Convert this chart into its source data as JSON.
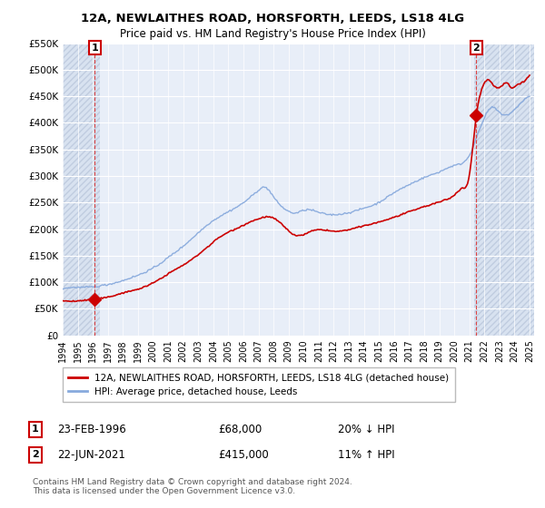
{
  "title": "12A, NEWLAITHES ROAD, HORSFORTH, LEEDS, LS18 4LG",
  "subtitle": "Price paid vs. HM Land Registry's House Price Index (HPI)",
  "ylim": [
    0,
    550000
  ],
  "yticks": [
    0,
    50000,
    100000,
    150000,
    200000,
    250000,
    300000,
    350000,
    400000,
    450000,
    500000,
    550000
  ],
  "ytick_labels": [
    "£0",
    "£50K",
    "£100K",
    "£150K",
    "£200K",
    "£250K",
    "£300K",
    "£350K",
    "£400K",
    "£450K",
    "£500K",
    "£550K"
  ],
  "xtick_years": [
    1994,
    1995,
    1996,
    1997,
    1998,
    1999,
    2000,
    2001,
    2002,
    2003,
    2004,
    2005,
    2006,
    2007,
    2008,
    2009,
    2010,
    2011,
    2012,
    2013,
    2014,
    2015,
    2016,
    2017,
    2018,
    2019,
    2020,
    2021,
    2022,
    2023,
    2024,
    2025
  ],
  "sale1_x": 1996.14,
  "sale1_y": 68000,
  "sale1_label": "1",
  "sale1_date": "23-FEB-1996",
  "sale1_price": "£68,000",
  "sale1_hpi": "20% ↓ HPI",
  "sale2_x": 2021.47,
  "sale2_y": 415000,
  "sale2_label": "2",
  "sale2_date": "22-JUN-2021",
  "sale2_price": "£415,000",
  "sale2_hpi": "11% ↑ HPI",
  "line_color_property": "#cc0000",
  "line_color_hpi": "#88aadd",
  "marker_color": "#cc0000",
  "legend_property": "12A, NEWLAITHES ROAD, HORSFORTH, LEEDS, LS18 4LG (detached house)",
  "legend_hpi": "HPI: Average price, detached house, Leeds",
  "footnote": "Contains HM Land Registry data © Crown copyright and database right 2024.\nThis data is licensed under the Open Government Licence v3.0.",
  "plot_bg": "#e8eef8",
  "hatch_region_end": 1996.5,
  "highlight_start": 2021.3,
  "highlight_color": "#dce8f8",
  "grid_color": "#ffffff"
}
